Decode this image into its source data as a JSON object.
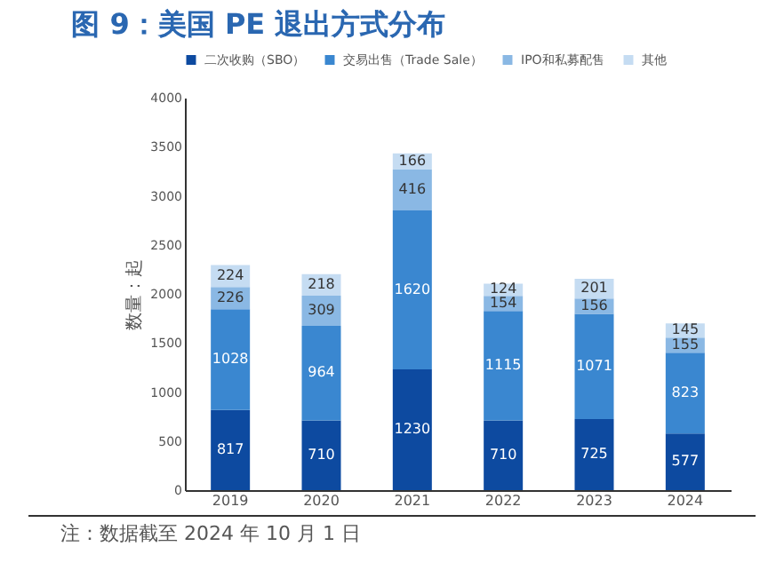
{
  "chart_data": {
    "type": "bar",
    "stacked": true,
    "title": "图 9：美国 PE 退出方式分布",
    "ylabel": "数量：起",
    "categories": [
      "2019",
      "2020",
      "2021",
      "2022",
      "2023",
      "2024"
    ],
    "series": [
      {
        "name": "二次收购（SBO）",
        "color": "#0d4aa0",
        "values": [
          817,
          710,
          1230,
          710,
          725,
          577
        ]
      },
      {
        "name": "交易出售（Trade Sale）",
        "color": "#3a87d0",
        "values": [
          1028,
          964,
          1620,
          1115,
          1071,
          823
        ]
      },
      {
        "name": "IPO和私募配售",
        "color": "#8ab8e4",
        "values": [
          226,
          309,
          416,
          154,
          156,
          155
        ]
      },
      {
        "name": "其他",
        "color": "#c5dcf2",
        "values": [
          224,
          218,
          166,
          124,
          201,
          145
        ]
      }
    ],
    "ylim": [
      0,
      4000
    ],
    "yticks": [
      0,
      500,
      1000,
      1500,
      2000,
      2500,
      3000,
      3500,
      4000
    ],
    "grid": false,
    "legend": "top",
    "data_labels": true,
    "annotations": [
      "注：数据截至 2024 年 10 月 1 日"
    ]
  }
}
